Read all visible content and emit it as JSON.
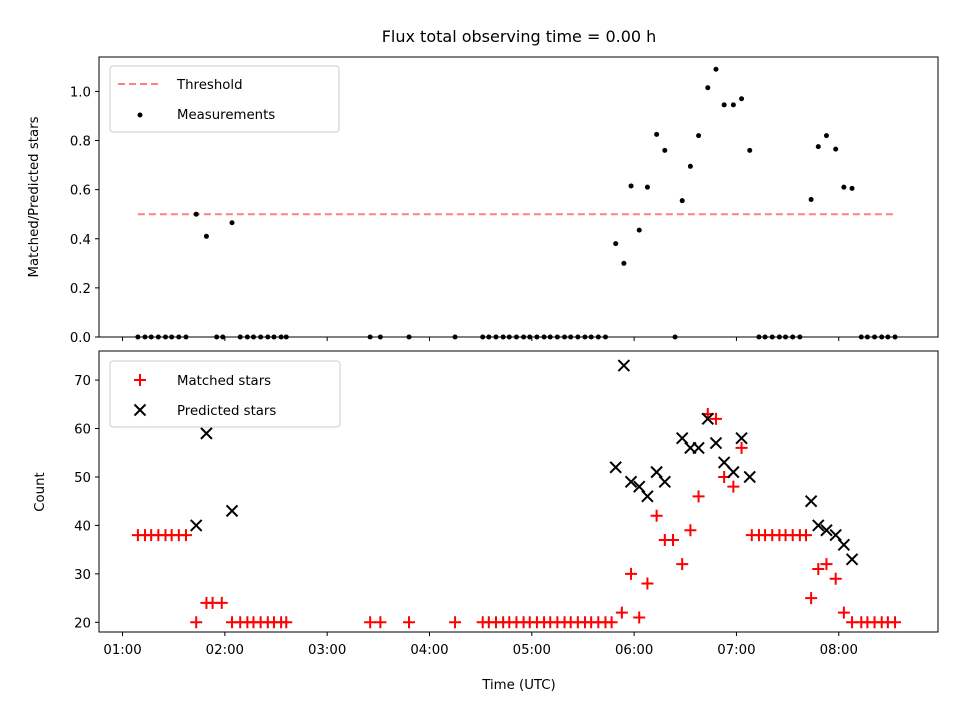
{
  "chart_data": [
    {
      "type": "scatter",
      "title": "Flux total observing time = 0.00 h",
      "xlabel": "",
      "ylabel": "Matched/Predicted stars",
      "ylim": [
        0,
        1.14
      ],
      "xlim": [
        0.77,
        8.97
      ],
      "yticks": [
        0.0,
        0.2,
        0.4,
        0.6,
        0.8,
        1.0
      ],
      "ytick_labels": [
        "0.0",
        "0.2",
        "0.4",
        "0.6",
        "0.8",
        "1.0"
      ],
      "legend_position": "top-left",
      "threshold": {
        "label": "Threshold",
        "y": 0.5,
        "x_start": 1.15,
        "x_end": 8.55,
        "color": "#ff8080"
      },
      "series": [
        {
          "name": "Measurements",
          "color": "#000000",
          "marker": "dot",
          "x": [
            1.15,
            1.22,
            1.28,
            1.35,
            1.42,
            1.48,
            1.55,
            1.62,
            1.72,
            1.82,
            1.92,
            1.98,
            2.07,
            2.15,
            2.22,
            2.28,
            2.35,
            2.42,
            2.48,
            2.55,
            2.6,
            3.42,
            3.52,
            3.8,
            4.25,
            4.52,
            4.58,
            4.65,
            4.72,
            4.78,
            4.85,
            4.92,
            4.98,
            5.05,
            5.12,
            5.18,
            5.25,
            5.32,
            5.38,
            5.45,
            5.52,
            5.58,
            5.65,
            5.72,
            5.82,
            5.9,
            5.97,
            6.05,
            6.13,
            6.22,
            6.3,
            6.4,
            6.47,
            6.55,
            6.63,
            6.72,
            6.8,
            6.88,
            6.97,
            7.05,
            7.13,
            7.22,
            7.28,
            7.35,
            7.42,
            7.48,
            7.55,
            7.62,
            7.73,
            7.8,
            7.88,
            7.97,
            8.05,
            8.13,
            8.22,
            8.28,
            8.35,
            8.42,
            8.48,
            8.55
          ],
          "y": [
            0,
            0,
            0,
            0,
            0,
            0,
            0,
            0,
            0.5,
            0.41,
            0,
            0,
            0.465,
            0,
            0,
            0,
            0,
            0,
            0,
            0,
            0,
            0,
            0,
            0,
            0,
            0,
            0,
            0,
            0,
            0,
            0,
            0,
            0,
            0,
            0,
            0,
            0,
            0,
            0,
            0,
            0,
            0,
            0,
            0,
            0.38,
            0.3,
            0.615,
            0.435,
            0.61,
            0.825,
            0.76,
            0,
            0.555,
            0.695,
            0.82,
            1.015,
            1.09,
            0.945,
            0.945,
            0.97,
            0.76,
            0,
            0,
            0,
            0,
            0,
            0,
            0,
            0.56,
            0.775,
            0.82,
            0.765,
            0.61,
            0.605,
            0,
            0,
            0,
            0,
            0,
            0
          ]
        }
      ]
    },
    {
      "type": "scatter",
      "title": "",
      "xlabel": "Time (UTC)",
      "ylabel": "Count",
      "ylim": [
        18,
        76
      ],
      "xlim": [
        0.77,
        8.97
      ],
      "yticks": [
        20,
        30,
        40,
        50,
        60,
        70
      ],
      "ytick_labels": [
        "20",
        "30",
        "40",
        "50",
        "60",
        "70"
      ],
      "xticks": [
        1,
        2,
        3,
        4,
        5,
        6,
        7,
        8
      ],
      "xtick_labels": [
        "01:00",
        "02:00",
        "03:00",
        "04:00",
        "05:00",
        "06:00",
        "07:00",
        "08:00"
      ],
      "legend_position": "top-left",
      "series": [
        {
          "name": "Matched stars",
          "color": "#ff0000",
          "marker": "plus",
          "x": [
            1.15,
            1.22,
            1.28,
            1.35,
            1.42,
            1.48,
            1.55,
            1.62,
            1.72,
            1.82,
            1.88,
            1.97,
            2.07,
            2.15,
            2.22,
            2.28,
            2.35,
            2.42,
            2.48,
            2.55,
            2.6,
            3.42,
            3.52,
            3.8,
            4.25,
            4.52,
            4.58,
            4.65,
            4.72,
            4.78,
            4.85,
            4.92,
            4.98,
            5.05,
            5.12,
            5.18,
            5.25,
            5.32,
            5.38,
            5.45,
            5.52,
            5.58,
            5.65,
            5.72,
            5.78,
            5.88,
            5.97,
            6.05,
            6.13,
            6.22,
            6.3,
            6.38,
            6.47,
            6.55,
            6.63,
            6.72,
            6.8,
            6.88,
            6.97,
            7.05,
            7.15,
            7.22,
            7.28,
            7.35,
            7.42,
            7.48,
            7.55,
            7.62,
            7.68,
            7.73,
            7.8,
            7.88,
            7.97,
            8.05,
            8.13,
            8.22,
            8.28,
            8.35,
            8.42,
            8.48,
            8.55
          ],
          "y": [
            38,
            38,
            38,
            38,
            38,
            38,
            38,
            38,
            20,
            24,
            24,
            24,
            20,
            20,
            20,
            20,
            20,
            20,
            20,
            20,
            20,
            20,
            20,
            20,
            20,
            20,
            20,
            20,
            20,
            20,
            20,
            20,
            20,
            20,
            20,
            20,
            20,
            20,
            20,
            20,
            20,
            20,
            20,
            20,
            20,
            22,
            30,
            21,
            28,
            42,
            37,
            37,
            32,
            39,
            46,
            63,
            62,
            50,
            48,
            56,
            38,
            38,
            38,
            38,
            38,
            38,
            38,
            38,
            38,
            25,
            31,
            32,
            29,
            22,
            20,
            20,
            20,
            20,
            20,
            20,
            20
          ]
        },
        {
          "name": "Predicted stars",
          "color": "#000000",
          "marker": "cross",
          "x": [
            1.72,
            1.82,
            2.07,
            5.82,
            5.9,
            5.97,
            6.05,
            6.13,
            6.22,
            6.3,
            6.47,
            6.55,
            6.63,
            6.72,
            6.8,
            6.88,
            6.97,
            7.05,
            7.13,
            7.73,
            7.8,
            7.88,
            7.97,
            8.05,
            8.13
          ],
          "y": [
            40,
            59,
            43,
            52,
            73,
            49,
            48,
            46,
            51,
            49,
            58,
            56,
            56,
            62,
            57,
            53,
            51,
            58,
            50,
            45,
            40,
            39,
            38,
            36,
            33
          ]
        }
      ]
    }
  ]
}
